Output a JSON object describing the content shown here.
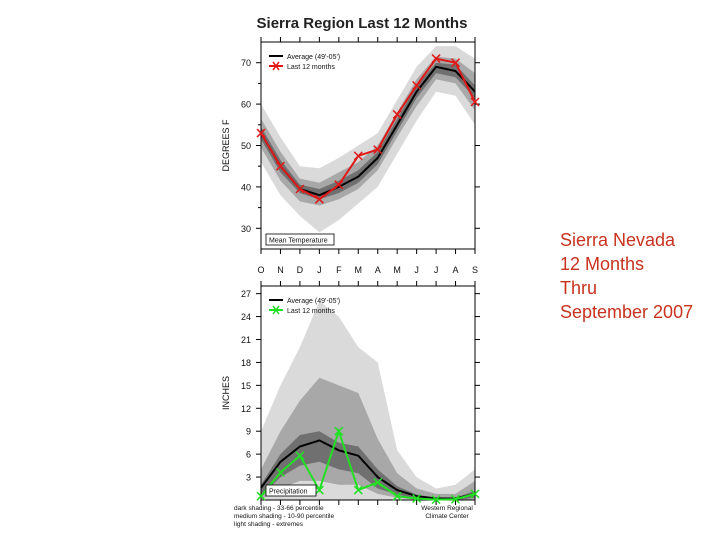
{
  "side_note": [
    "Sierra Nevada",
    "12 Months",
    "Thru",
    "September 2007"
  ],
  "colors": {
    "avg": "#000000",
    "temp_recent": "#e01818",
    "precip_recent": "#22e022",
    "band_dark": "#707070",
    "band_medium": "#a8a8a8",
    "band_light": "#dadada",
    "side_note": "#c8321e"
  },
  "chart_data": [
    {
      "type": "line",
      "title": "Sierra Region Last 12 Months",
      "ylabel": "DEGREES F",
      "label_box": "Mean Temperature",
      "categories": [
        "O",
        "N",
        "D",
        "J",
        "F",
        "M",
        "A",
        "M",
        "J",
        "J",
        "A",
        "S"
      ],
      "ylim": [
        25,
        75
      ],
      "yticks": [
        30,
        40,
        50,
        60,
        70
      ],
      "legend": {
        "position": "top-left",
        "avg_label": "Average (49'-05')",
        "recent_label": "Last 12 months"
      },
      "series": [
        {
          "name": "Average (49'-05')",
          "values": [
            53,
            45,
            39.5,
            38,
            40,
            42.5,
            47,
            55,
            63,
            69,
            68,
            63
          ]
        },
        {
          "name": "Last 12 months",
          "values": [
            53,
            45,
            39.5,
            37,
            40.5,
            47.5,
            49,
            57.5,
            64.5,
            71,
            70,
            60.5
          ]
        }
      ],
      "bands": {
        "dark": {
          "low": [
            51.5,
            43.5,
            38.5,
            37,
            38.5,
            41,
            45.5,
            53.5,
            61.5,
            67.5,
            66.5,
            61.5
          ],
          "high": [
            54.5,
            46.5,
            40.5,
            39.5,
            41.5,
            44,
            48.5,
            56.5,
            64.5,
            70,
            69.5,
            64.5
          ]
        },
        "medium": {
          "low": [
            49.5,
            41.5,
            36.5,
            35.5,
            37,
            39.5,
            44,
            52,
            59.5,
            66,
            65,
            58.5
          ],
          "high": [
            56.5,
            48.5,
            42,
            41,
            43.5,
            46,
            50,
            58,
            66,
            71.5,
            71,
            67.5
          ]
        },
        "light": {
          "low": [
            46,
            38,
            33,
            29,
            32,
            36,
            40,
            48,
            56,
            63,
            62,
            55
          ],
          "high": [
            60,
            52,
            45,
            44.5,
            47,
            50,
            53,
            61,
            69,
            74,
            74,
            71
          ]
        }
      }
    },
    {
      "type": "line",
      "ylabel": "INCHES",
      "label_box": "Precipitation",
      "categories": [
        "O",
        "N",
        "D",
        "J",
        "F",
        "M",
        "A",
        "M",
        "J",
        "J",
        "A",
        "S"
      ],
      "ylim": [
        0,
        28
      ],
      "yticks": [
        3,
        6,
        9,
        12,
        15,
        18,
        21,
        24,
        27
      ],
      "legend": {
        "position": "top-left",
        "avg_label": "Average (49'-05')",
        "recent_label": "Last 12 months"
      },
      "series": [
        {
          "name": "Average (49'-05')",
          "values": [
            1.6,
            5,
            7,
            7.8,
            6.5,
            5.8,
            3,
            1.3,
            0.5,
            0.2,
            0.2,
            0.8
          ]
        },
        {
          "name": "Last 12 months",
          "values": [
            0.5,
            3.6,
            5.8,
            1.3,
            9,
            1.3,
            2.3,
            0.5,
            0.2,
            0.05,
            0.1,
            0.8
          ]
        }
      ],
      "bands": {
        "dark": {
          "low": [
            0.5,
            3,
            4.5,
            5,
            4,
            3.5,
            1.5,
            0.7,
            0.2,
            0,
            0,
            0.3
          ],
          "high": [
            2,
            6,
            8.5,
            9,
            7.5,
            7,
            4,
            1.8,
            0.7,
            0.3,
            0.3,
            1.2
          ]
        },
        "medium": {
          "low": [
            0.1,
            1.5,
            2.5,
            2.5,
            2,
            2,
            0.8,
            0.3,
            0.05,
            0,
            0,
            0.1
          ],
          "high": [
            4,
            9,
            13,
            16,
            15,
            14,
            8,
            3.5,
            1.5,
            0.8,
            0.8,
            2.5
          ]
        },
        "light": {
          "low": [
            0,
            0,
            0,
            0,
            0,
            0,
            0,
            0,
            0,
            0,
            0,
            0
          ],
          "high": [
            9,
            15,
            20,
            26,
            24,
            20,
            18,
            6.5,
            3,
            1.5,
            2,
            4
          ]
        }
      },
      "notes": [
        "dark shading  - 33-66 percentile",
        "medium shading - 10-90 percentile",
        "light shading - extremes"
      ],
      "credit": [
        "Western Regional",
        "Climate Center"
      ]
    }
  ]
}
